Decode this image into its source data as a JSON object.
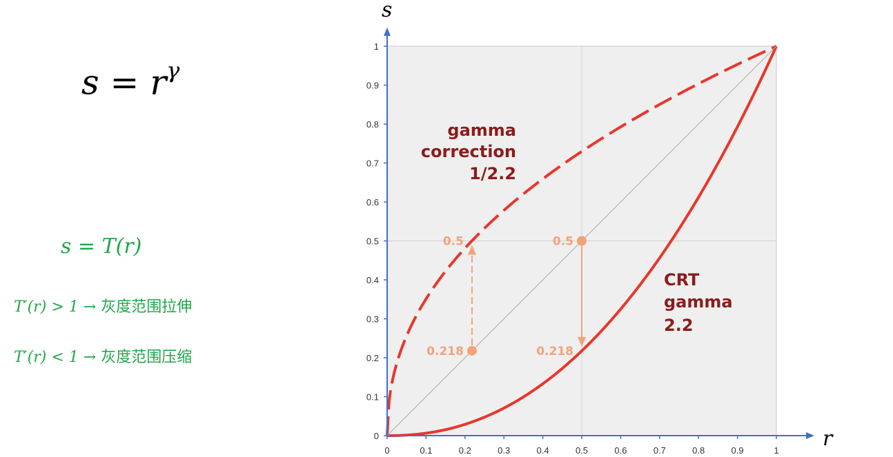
{
  "formulas": {
    "main_base": "s = r",
    "main_exp": "γ",
    "transform": "s = T(r)",
    "rule1": {
      "lhs": "T′(r) > 1",
      "arrow": "→",
      "text": "灰度范围拉伸"
    },
    "rule2": {
      "lhs": "T′(r) < 1",
      "arrow": "→",
      "text": "灰度范围压缩"
    }
  },
  "chart_data": {
    "type": "line",
    "xlabel": "r",
    "ylabel": "s",
    "xlim": [
      0,
      1
    ],
    "ylim": [
      0,
      1
    ],
    "x_ticks": [
      "0",
      "0.1",
      "0.2",
      "0.3",
      "0.4",
      "0.5",
      "0.6",
      "0.7",
      "0.8",
      "0.9",
      "1"
    ],
    "y_ticks": [
      "0",
      "0.1",
      "0.2",
      "0.3",
      "0.4",
      "0.5",
      "0.6",
      "0.7",
      "0.8",
      "0.9",
      "1"
    ],
    "grid": "major at 0.5",
    "series": [
      {
        "name": "gamma correction 1/2.2",
        "gamma": 0.4545,
        "style": "dashed",
        "color": "#e8372c"
      },
      {
        "name": "CRT gamma 2.2",
        "gamma": 2.2,
        "style": "solid",
        "color": "#e8372c"
      },
      {
        "name": "",
        "gamma": 1,
        "style": "thin",
        "color": "#aaaaaa"
      }
    ],
    "annotations": {
      "correction": [
        "gamma",
        "correction",
        "1/2.2"
      ],
      "crt": [
        "CRT",
        "gamma",
        "2.2"
      ],
      "color": "#8b1c1c"
    },
    "markers": [
      {
        "x": 0.218,
        "y": 0.218,
        "label": "0.218"
      },
      {
        "x": 0.218,
        "y": 0.5,
        "label": "0.5"
      },
      {
        "x": 0.5,
        "y": 0.5,
        "label": "0.5"
      },
      {
        "x": 0.5,
        "y": 0.218,
        "label": "0.218"
      }
    ],
    "marker_color": "#f3a27a"
  }
}
